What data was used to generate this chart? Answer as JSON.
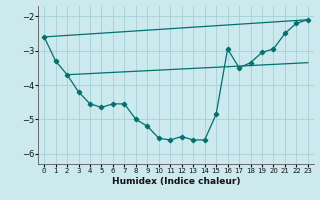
{
  "bg_color": "#cce9ed",
  "line_color": "#007070",
  "grid_color": "#a8d4d9",
  "xlabel": "Humidex (Indice chaleur)",
  "xlim": [
    -0.5,
    23.5
  ],
  "ylim": [
    -6.3,
    -1.7
  ],
  "yticks": [
    -6,
    -5,
    -4,
    -3,
    -2
  ],
  "xticks": [
    0,
    1,
    2,
    3,
    4,
    5,
    6,
    7,
    8,
    9,
    10,
    11,
    12,
    13,
    14,
    15,
    16,
    17,
    18,
    19,
    20,
    21,
    22,
    23
  ],
  "line1_x": [
    0,
    1,
    2,
    3,
    4,
    5,
    6,
    7,
    8,
    9,
    10,
    11,
    12,
    13,
    14,
    15,
    16,
    17,
    18,
    19,
    20,
    21,
    22,
    23
  ],
  "line1_y": [
    -2.6,
    -3.3,
    -3.7,
    -4.2,
    -4.55,
    -4.65,
    -4.55,
    -4.55,
    -5.0,
    -5.2,
    -5.55,
    -5.6,
    -5.5,
    -5.6,
    -5.6,
    -4.85,
    -2.95,
    -3.5,
    -3.35,
    -3.05,
    -2.95,
    -2.5,
    -2.2,
    -2.1
  ],
  "line2_x": [
    0,
    23
  ],
  "line2_y": [
    -2.6,
    -2.1
  ],
  "line3_x": [
    2,
    23
  ],
  "line3_y": [
    -3.7,
    -3.35
  ]
}
